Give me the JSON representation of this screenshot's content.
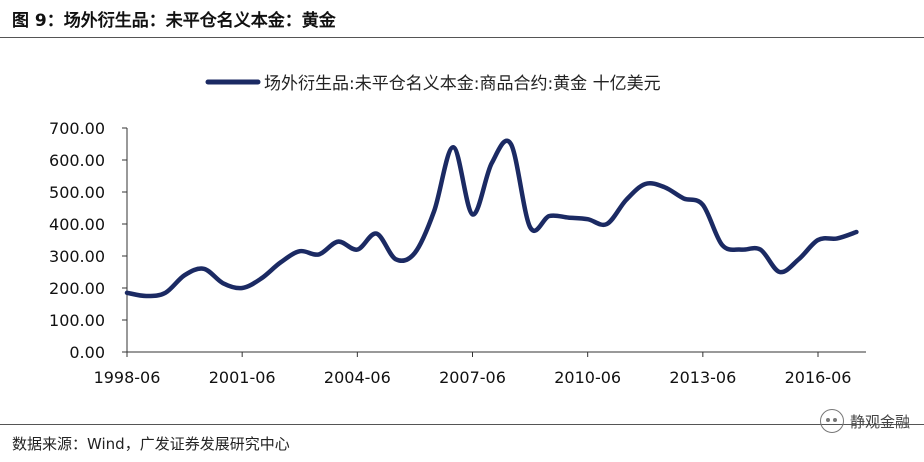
{
  "figure": {
    "title": "图 9：场外衍生品：未平仓名义本金：黄金",
    "source": "数据来源：Wind，广发证券发展研究中心",
    "watermark": "静观金融",
    "watermark_icon": "wechat-icon"
  },
  "colors": {
    "line": "#1b2a63",
    "axis": "#333333"
  },
  "chart_data": {
    "type": "line",
    "x_tick_labels": [
      "1998-06",
      "2001-06",
      "2004-06",
      "2007-06",
      "2010-06",
      "2013-06",
      "2016-06"
    ],
    "y_tick_labels": [
      "0.00",
      "100.00",
      "200.00",
      "300.00",
      "400.00",
      "500.00",
      "600.00",
      "700.00"
    ],
    "ylim": [
      0,
      700
    ],
    "xlim": [
      1998.5,
      2017.75
    ],
    "grid": false,
    "legend_position": "top",
    "series": [
      {
        "name": "场外衍生品:未平仓名义本金:商品合约:黄金 十亿美元",
        "x": [
          1998.5,
          1999.0,
          1999.5,
          2000.0,
          2000.5,
          2001.0,
          2001.5,
          2002.0,
          2002.5,
          2003.0,
          2003.5,
          2004.0,
          2004.5,
          2005.0,
          2005.5,
          2006.0,
          2006.5,
          2007.0,
          2007.5,
          2008.0,
          2008.5,
          2009.0,
          2009.5,
          2010.0,
          2010.5,
          2011.0,
          2011.5,
          2012.0,
          2012.5,
          2013.0,
          2013.5,
          2014.0,
          2014.5,
          2015.0,
          2015.5,
          2016.0,
          2016.5,
          2017.0,
          2017.5
        ],
        "values": [
          185,
          175,
          185,
          240,
          260,
          215,
          200,
          230,
          280,
          315,
          305,
          345,
          320,
          370,
          290,
          310,
          440,
          640,
          430,
          590,
          650,
          390,
          425,
          420,
          415,
          400,
          475,
          525,
          515,
          480,
          460,
          335,
          320,
          320,
          250,
          290,
          350,
          355,
          375
        ]
      }
    ]
  }
}
